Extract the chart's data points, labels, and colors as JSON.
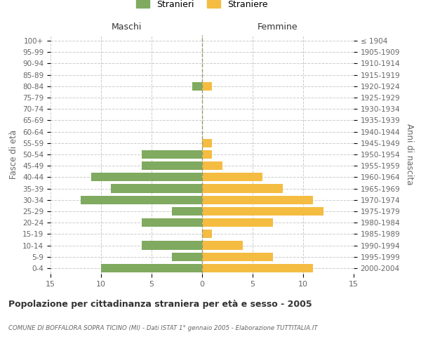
{
  "age_groups": [
    "0-4",
    "5-9",
    "10-14",
    "15-19",
    "20-24",
    "25-29",
    "30-34",
    "35-39",
    "40-44",
    "45-49",
    "50-54",
    "55-59",
    "60-64",
    "65-69",
    "70-74",
    "75-79",
    "80-84",
    "85-89",
    "90-94",
    "95-99",
    "100+"
  ],
  "birth_years": [
    "2000-2004",
    "1995-1999",
    "1990-1994",
    "1985-1989",
    "1980-1984",
    "1975-1979",
    "1970-1974",
    "1965-1969",
    "1960-1964",
    "1955-1959",
    "1950-1954",
    "1945-1949",
    "1940-1944",
    "1935-1939",
    "1930-1934",
    "1925-1929",
    "1920-1924",
    "1915-1919",
    "1910-1914",
    "1905-1909",
    "≤ 1904"
  ],
  "males": [
    10,
    3,
    6,
    0,
    6,
    3,
    12,
    9,
    11,
    6,
    6,
    0,
    0,
    0,
    0,
    0,
    1,
    0,
    0,
    0,
    0
  ],
  "females": [
    11,
    7,
    4,
    1,
    7,
    12,
    11,
    8,
    6,
    2,
    1,
    1,
    0,
    0,
    0,
    0,
    1,
    0,
    0,
    0,
    0
  ],
  "male_color": "#7faa5f",
  "female_color": "#f5bc42",
  "bar_height": 0.75,
  "xlim": 15,
  "title": "Popolazione per cittadinanza straniera per età e sesso - 2005",
  "subtitle": "COMUNE DI BOFFALORA SOPRA TICINO (MI) - Dati ISTAT 1° gennaio 2005 - Elaborazione TUTTITALIA.IT",
  "ylabel_left": "Fasce di età",
  "ylabel_right": "Anni di nascita",
  "maschi_label": "Maschi",
  "femmine_label": "Femmine",
  "legend_stranieri": "Stranieri",
  "legend_straniere": "Straniere",
  "bg_color": "#ffffff",
  "grid_color": "#cccccc",
  "text_color": "#666666",
  "title_color": "#333333"
}
